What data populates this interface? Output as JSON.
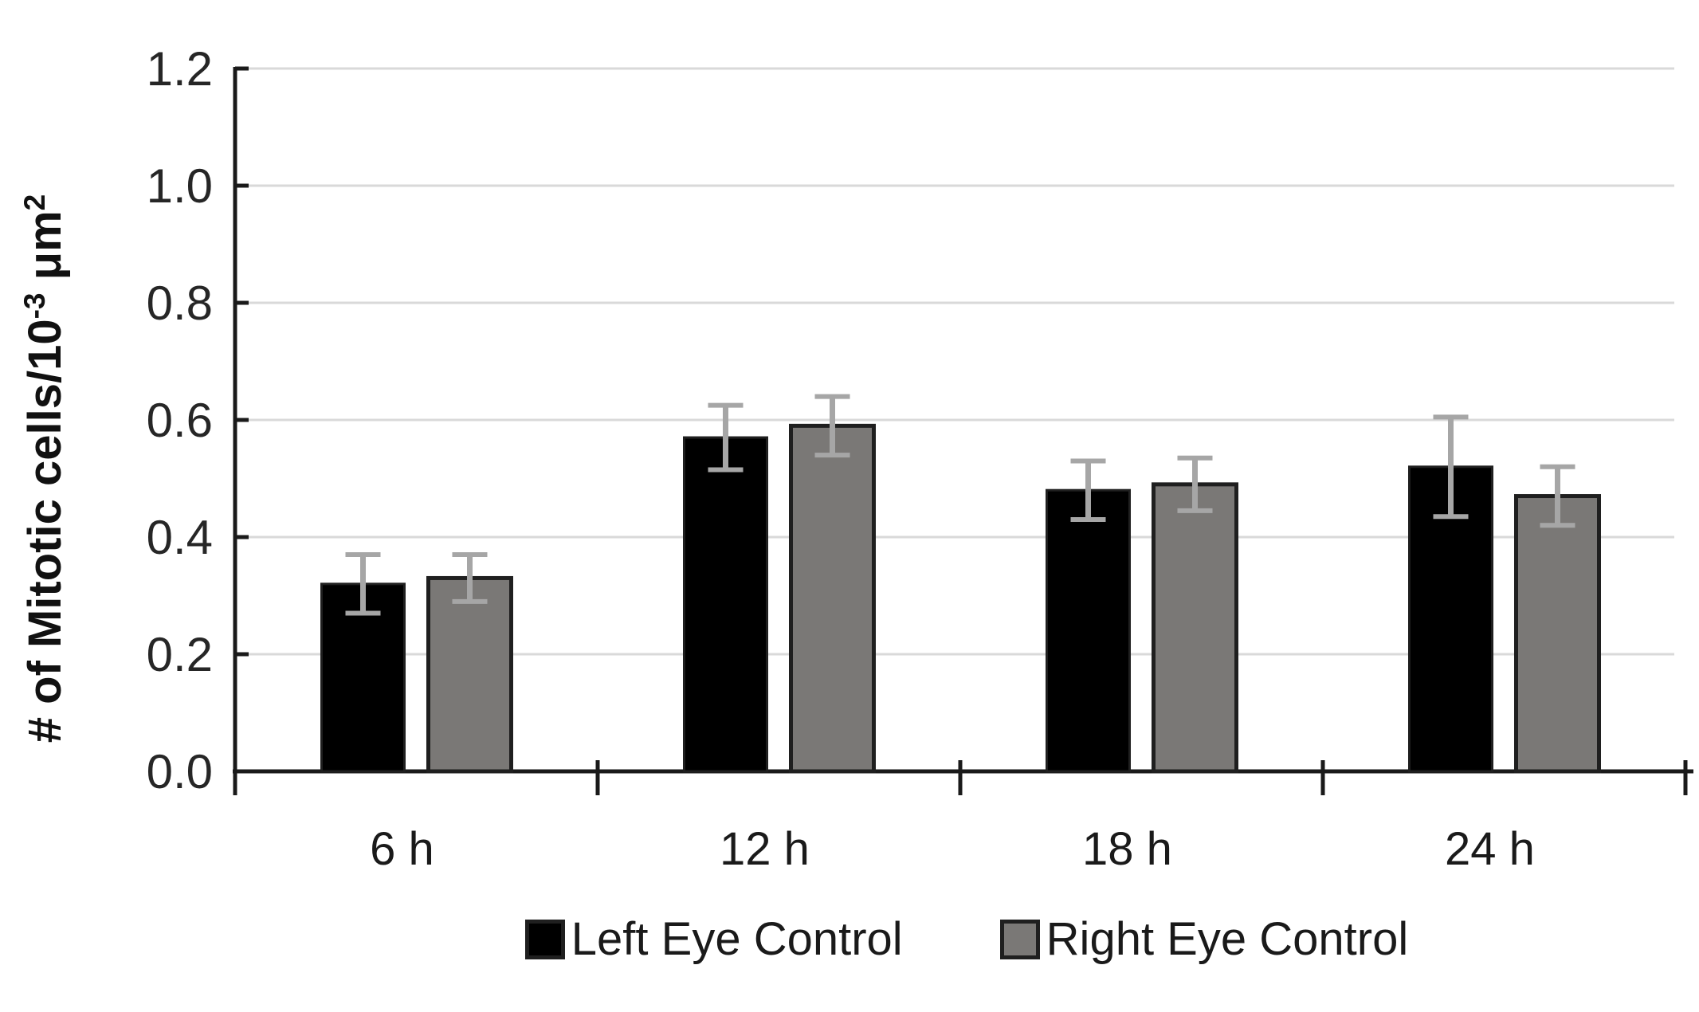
{
  "page": {
    "background": "#ffffff"
  },
  "chart_data": {
    "type": "bar",
    "title": "",
    "categories": [
      "6 h",
      "12 h",
      "18 h",
      "24 h"
    ],
    "series": [
      {
        "name": "Left Eye Control",
        "color": "#000000",
        "values": [
          0.32,
          0.57,
          0.48,
          0.52
        ],
        "errors": [
          0.05,
          0.055,
          0.05,
          0.085
        ]
      },
      {
        "name": "Right Eye Control",
        "color": "#7a7876",
        "values": [
          0.33,
          0.59,
          0.49,
          0.47
        ],
        "errors": [
          0.04,
          0.05,
          0.045,
          0.05
        ]
      }
    ],
    "xlabel": "",
    "ylabel": "# of Mitotic cells/10⁻³ μm²",
    "ylabel_parts": {
      "base1": "# of Mitotic cells/10",
      "sup1": "-3",
      "base2": " μm",
      "sup2": "2"
    },
    "ylim": [
      0,
      1.2
    ],
    "ytick_step": 0.2,
    "ytick_labels": [
      "0.0",
      "0.2",
      "0.4",
      "0.6",
      "0.8",
      "1.0",
      "1.2"
    ],
    "grid": true,
    "legend_position": "bottom",
    "colors": {
      "error_bar": "#a6a6a6",
      "gridline": "#d9d9d9",
      "axis": "#1a1a1a",
      "tick_label": "#262626",
      "bar_border": "#1f1f1f"
    }
  }
}
